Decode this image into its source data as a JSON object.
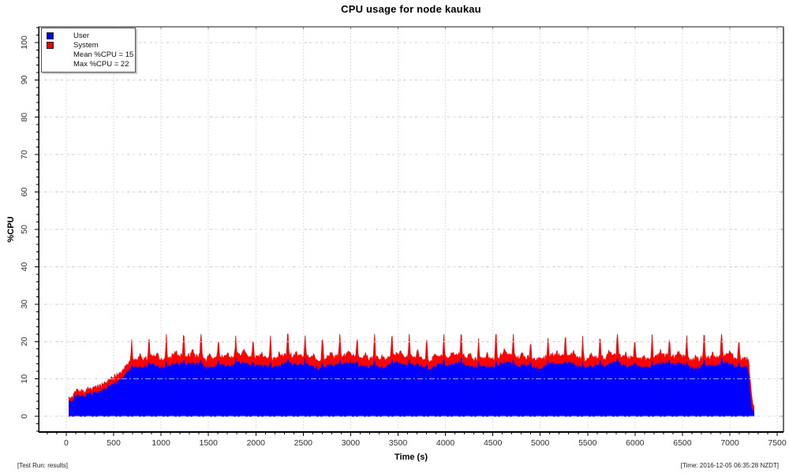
{
  "title": "CPU usage for node kaukau",
  "footer": {
    "left": "[Test Run: results]",
    "right": "[Time: 2016-12-05 06:35:28 NZDT]"
  },
  "legend": {
    "position": "top-left",
    "items": [
      {
        "label": "User",
        "color": "#0000ee"
      },
      {
        "label": "System",
        "color": "#ee0000"
      }
    ],
    "stats": [
      "Mean %CPU = 15",
      "Max %CPU = 22"
    ]
  },
  "chart_data": {
    "type": "area",
    "stacked": true,
    "title": "CPU usage for node kaukau",
    "xlabel": "Time (s)",
    "ylabel": "%CPU",
    "xlim": [
      -291,
      7566
    ],
    "ylim": [
      -4.2,
      104.2
    ],
    "x_ticks": [
      0,
      500,
      1000,
      1500,
      2000,
      2500,
      3000,
      3500,
      4000,
      4500,
      5000,
      5500,
      6000,
      6500,
      7000,
      7500
    ],
    "x_minor_step": 100,
    "y_ticks": [
      0,
      10,
      20,
      30,
      40,
      50,
      60,
      70,
      80,
      90,
      100
    ],
    "y_minor_step": 2,
    "grid": "dashed",
    "mean_cpu": 15,
    "max_cpu": 22,
    "colors": {
      "user": "#0000ff",
      "system": "#ff0000",
      "grid_h": "#c9c9c9",
      "grid_v": "#dedede",
      "grid_overlay": "rgba(255,255,255,0.62)",
      "frame_top": "#8a8a8a",
      "frame_right": "#6e6e6e",
      "frame_bottom": "#000000",
      "frame_left": "#000000",
      "tick": "#000000",
      "tick_label": "#333333"
    },
    "sample_step": 6,
    "series": [
      {
        "name": "User",
        "color": "#0000ff",
        "envelope": [
          [
            30,
            3.8
          ],
          [
            70,
            4.3
          ],
          [
            110,
            5.6
          ],
          [
            140,
            4.8
          ],
          [
            200,
            5.2
          ],
          [
            300,
            6.2
          ],
          [
            420,
            7.6
          ],
          [
            540,
            9.3
          ],
          [
            640,
            11.0
          ],
          [
            730,
            12.4
          ],
          [
            820,
            13.3
          ],
          [
            900,
            13.6
          ],
          [
            3600,
            13.5
          ],
          [
            7180,
            13.5
          ],
          [
            7200,
            10.5
          ],
          [
            7212,
            6.0
          ],
          [
            7226,
            2.6
          ],
          [
            7240,
            1.4
          ],
          [
            7256,
            0.9
          ]
        ]
      },
      {
        "name": "System",
        "color": "#ff0000",
        "envelope": [
          [
            30,
            0.9
          ],
          [
            110,
            1.5
          ],
          [
            200,
            1.3
          ],
          [
            420,
            1.7
          ],
          [
            640,
            2.0
          ],
          [
            820,
            2.2
          ],
          [
            7180,
            2.2
          ],
          [
            7200,
            3.6
          ],
          [
            7212,
            4.2
          ],
          [
            7226,
            4.0
          ],
          [
            7240,
            2.2
          ],
          [
            7256,
            1.2
          ]
        ]
      }
    ],
    "spikes": {
      "start": 690,
      "end": 7150,
      "interval": 183,
      "width": 16,
      "sys_amp": 5.0,
      "user_amp": 1.7,
      "mid_bump_amp": 1.4,
      "mid_bump_width": 30
    },
    "noise": {
      "seed": 20161205,
      "user_sd": 0.5,
      "sys_sd": 0.4,
      "wander": [
        0.5,
        90,
        0.3,
        37
      ]
    }
  }
}
